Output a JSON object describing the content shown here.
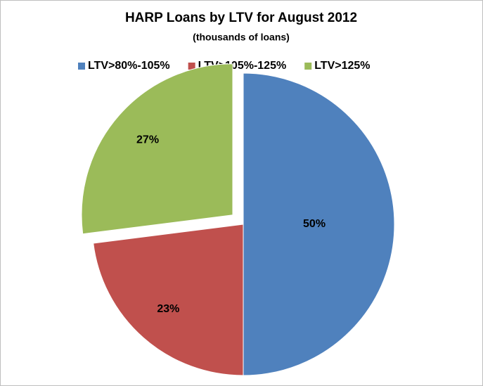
{
  "chart_data": {
    "type": "pie",
    "title": "HARP Loans by LTV for August 2012",
    "subtitle": "(thousands of loans)",
    "categories": [
      "LTV>80%-105%",
      "LTV>105%-125%",
      "LTV>125%"
    ],
    "values": [
      50,
      23,
      27
    ],
    "value_labels": [
      "50%",
      "23%",
      "27%"
    ],
    "colors": [
      "#4f81bd",
      "#c0504d",
      "#9bbb59"
    ],
    "explode": [
      false,
      false,
      true
    ],
    "legend": "top"
  }
}
